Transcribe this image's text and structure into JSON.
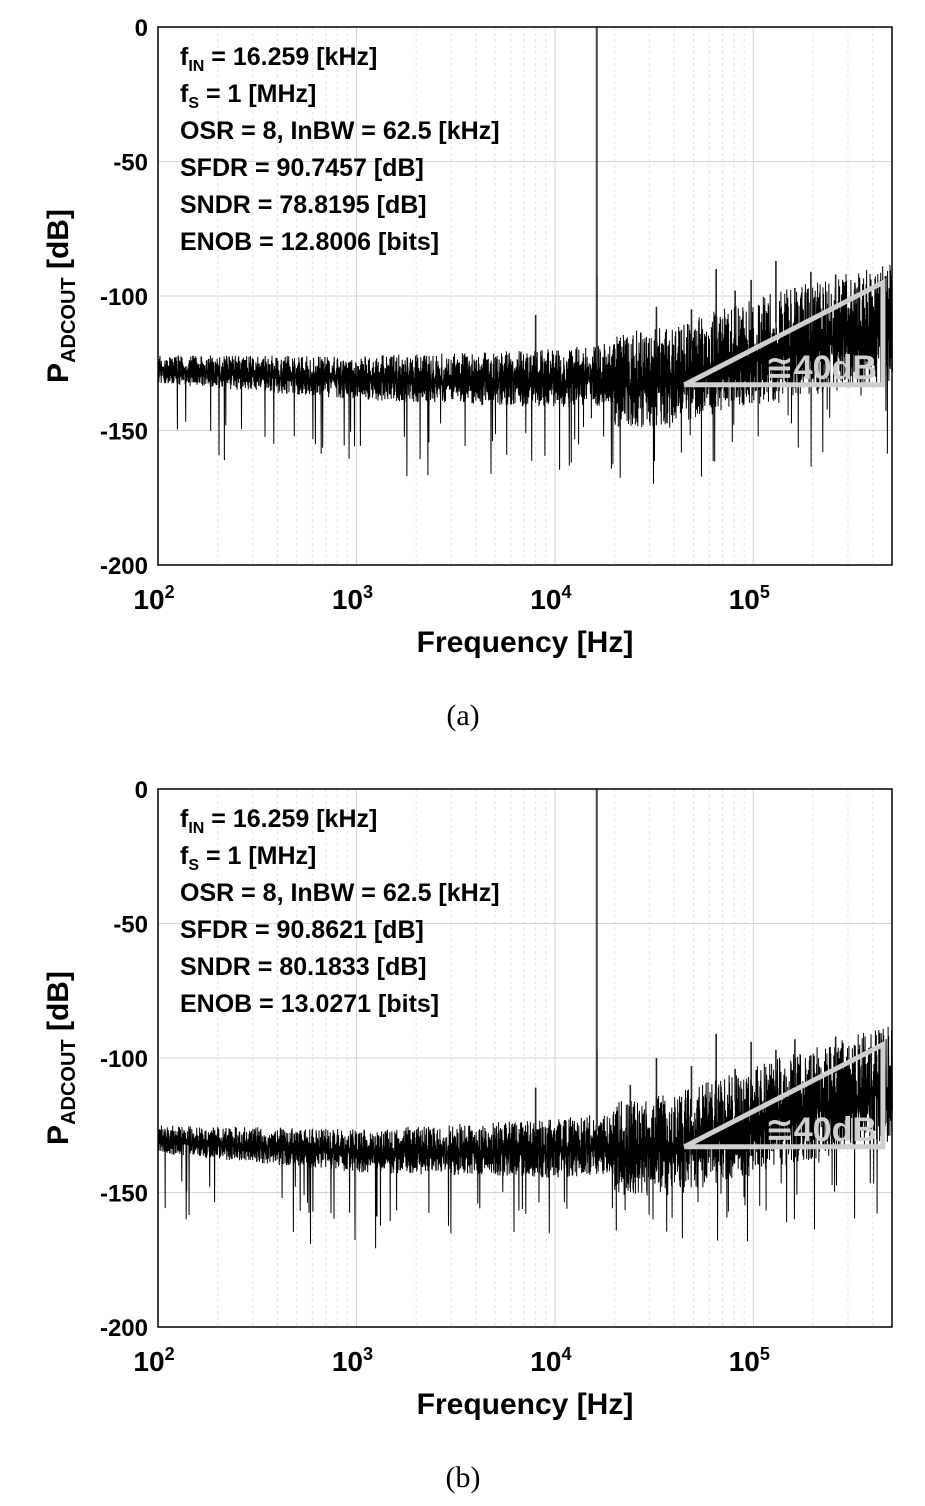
{
  "chart_data": [
    {
      "type": "line",
      "panel": "(a)",
      "xlabel": "Frequency [Hz]",
      "ylabel": {
        "base": "P",
        "sub": "ADCOUT",
        "unit": " [dB]"
      },
      "xscale": "log",
      "xlim": [
        100,
        500000
      ],
      "ylim": [
        -200,
        0
      ],
      "grid": true,
      "xticks": [
        100,
        1000,
        10000,
        100000
      ],
      "xtick_labels": [
        {
          "base": "10",
          "exp": "2"
        },
        {
          "base": "10",
          "exp": "3"
        },
        {
          "base": "10",
          "exp": "4"
        },
        {
          "base": "10",
          "exp": "5"
        }
      ],
      "yticks": [
        0,
        -50,
        -100,
        -150,
        -200
      ],
      "ytick_labels": [
        "0",
        "-50",
        "-100",
        "-150",
        "-200"
      ],
      "annotations": [
        {
          "base": "f",
          "sub": "IN",
          "rest": " = 16.259 [kHz]"
        },
        {
          "base": "f",
          "sub": "S",
          "rest": " = 1 [MHz]"
        },
        {
          "base": "OSR = 8, InBW = 62.5 [kHz]",
          "sub": "",
          "rest": ""
        },
        {
          "base": "SFDR = 90.7457 [dB]",
          "sub": "",
          "rest": ""
        },
        {
          "base": "SNDR = 78.8195 [dB]",
          "sub": "",
          "rest": ""
        },
        {
          "base": "ENOB = 12.8006 [bits]",
          "sub": "",
          "rest": ""
        }
      ],
      "slope_label": "≅40dB",
      "signal": {
        "freq": 16259,
        "db": 0
      },
      "noise_floor": [
        [
          100,
          -125
        ],
        [
          1000,
          -127
        ],
        [
          10000,
          -126
        ],
        [
          40000,
          -122
        ],
        [
          100000,
          -112
        ],
        [
          500000,
          -100
        ]
      ],
      "harmonic_spurs": [
        {
          "freq": 8000,
          "db": -107
        },
        {
          "freq": 16300,
          "db": -92
        },
        {
          "freq": 32500,
          "db": -104
        },
        {
          "freq": 48800,
          "db": -105
        },
        {
          "freq": 65000,
          "db": -90
        },
        {
          "freq": 81000,
          "db": -98
        },
        {
          "freq": 97500,
          "db": -94
        },
        {
          "freq": 130000,
          "db": -87
        },
        {
          "freq": 162000,
          "db": -97
        },
        {
          "freq": 195000,
          "db": -91
        },
        {
          "freq": 260000,
          "db": -92
        },
        {
          "freq": 325000,
          "db": -95
        }
      ]
    },
    {
      "type": "line",
      "panel": "(b)",
      "xlabel": "Frequency [Hz]",
      "ylabel": {
        "base": "P",
        "sub": "ADCOUT",
        "unit": " [dB]"
      },
      "xscale": "log",
      "xlim": [
        100,
        500000
      ],
      "ylim": [
        -200,
        0
      ],
      "grid": true,
      "xticks": [
        100,
        1000,
        10000,
        100000
      ],
      "xtick_labels": [
        {
          "base": "10",
          "exp": "2"
        },
        {
          "base": "10",
          "exp": "3"
        },
        {
          "base": "10",
          "exp": "4"
        },
        {
          "base": "10",
          "exp": "5"
        }
      ],
      "yticks": [
        0,
        -50,
        -100,
        -150,
        -200
      ],
      "ytick_labels": [
        "0",
        "-50",
        "-100",
        "-150",
        "-200"
      ],
      "annotations": [
        {
          "base": "f",
          "sub": "IN",
          "rest": " = 16.259 [kHz]"
        },
        {
          "base": "f",
          "sub": "S",
          "rest": " = 1 [MHz]"
        },
        {
          "base": "OSR = 8, InBW = 62.5 [kHz]",
          "sub": "",
          "rest": ""
        },
        {
          "base": "SFDR = 90.8621 [dB]",
          "sub": "",
          "rest": ""
        },
        {
          "base": "SNDR = 80.1833 [dB]",
          "sub": "",
          "rest": ""
        },
        {
          "base": "ENOB = 13.0271 [bits]",
          "sub": "",
          "rest": ""
        }
      ],
      "slope_label": "≅40dB",
      "signal": {
        "freq": 16259,
        "db": 0
      },
      "noise_floor": [
        [
          100,
          -128
        ],
        [
          1000,
          -131
        ],
        [
          10000,
          -129
        ],
        [
          40000,
          -124
        ],
        [
          100000,
          -114
        ],
        [
          500000,
          -100
        ]
      ],
      "harmonic_spurs": [
        {
          "freq": 8000,
          "db": -111
        },
        {
          "freq": 16300,
          "db": -97
        },
        {
          "freq": 24000,
          "db": -110
        },
        {
          "freq": 32500,
          "db": -100
        },
        {
          "freq": 48800,
          "db": -103
        },
        {
          "freq": 65000,
          "db": -91
        },
        {
          "freq": 81000,
          "db": -104
        },
        {
          "freq": 97500,
          "db": -94
        },
        {
          "freq": 130000,
          "db": -97
        },
        {
          "freq": 162000,
          "db": -93
        },
        {
          "freq": 195000,
          "db": -99
        },
        {
          "freq": 260000,
          "db": -92
        },
        {
          "freq": 390000,
          "db": -96
        }
      ]
    }
  ]
}
